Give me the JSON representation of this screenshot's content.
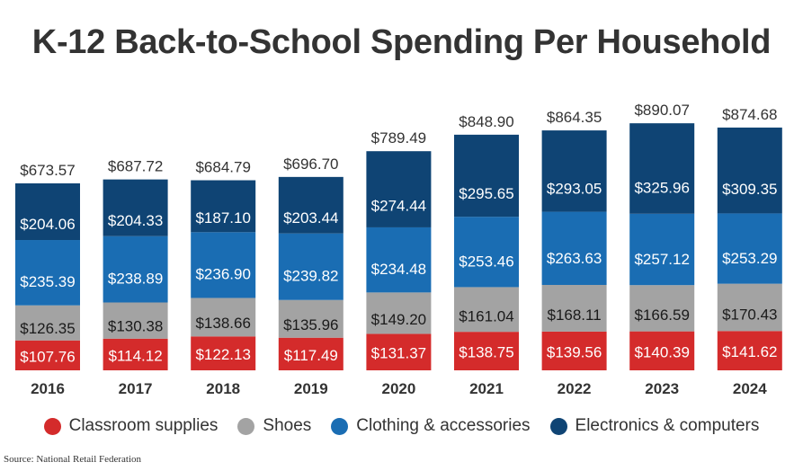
{
  "chart_data": {
    "type": "bar",
    "stacked": true,
    "title": "K-12 Back-to-School Spending Per Household",
    "categories": [
      "2016",
      "2017",
      "2018",
      "2019",
      "2020",
      "2021",
      "2022",
      "2023",
      "2024"
    ],
    "series": [
      {
        "name": "Classroom supplies",
        "color": "#d42b2b",
        "values": [
          107.76,
          114.12,
          122.13,
          117.49,
          131.37,
          138.75,
          139.56,
          140.39,
          141.62
        ],
        "labels": [
          "$107.76",
          "$114.12",
          "$122.13",
          "$117.49",
          "$131.37",
          "$138.75",
          "$139.56",
          "$140.39",
          "$141.62"
        ]
      },
      {
        "name": "Shoes",
        "color": "#a3a3a3",
        "values": [
          126.35,
          130.38,
          138.66,
          135.96,
          149.2,
          161.04,
          168.11,
          166.59,
          170.43
        ],
        "labels": [
          "$126.35",
          "$130.38",
          "$138.66",
          "$135.96",
          "$149.20",
          "$161.04",
          "$168.11",
          "$166.59",
          "$170.43"
        ]
      },
      {
        "name": "Clothing & accessories",
        "color": "#1a6db3",
        "values": [
          235.39,
          238.89,
          236.9,
          239.82,
          234.48,
          253.46,
          263.63,
          257.12,
          253.29
        ],
        "labels": [
          "$235.39",
          "$238.89",
          "$236.90",
          "$239.82",
          "$234.48",
          "$253.46",
          "$263.63",
          "$257.12",
          "$253.29"
        ]
      },
      {
        "name": "Electronics & computers",
        "color": "#0f4474",
        "values": [
          204.06,
          204.33,
          187.1,
          203.44,
          274.44,
          295.65,
          293.05,
          325.96,
          309.35
        ],
        "labels": [
          "$204.06",
          "$204.33",
          "$187.10",
          "$203.44",
          "$274.44",
          "$295.65",
          "$293.05",
          "$325.96",
          "$309.35"
        ]
      }
    ],
    "totals": [
      673.57,
      687.72,
      684.79,
      696.7,
      789.49,
      848.9,
      864.35,
      890.07,
      874.68
    ],
    "total_labels": [
      "$673.57",
      "$687.72",
      "$684.79",
      "$696.70",
      "$789.49",
      "$848.90",
      "$864.35",
      "$890.07",
      "$874.68"
    ],
    "ylim": [
      0,
      900
    ],
    "xlabel": "",
    "ylabel": "",
    "grid": false,
    "legend_position": "bottom"
  },
  "source": "Source: National Retail Federation"
}
